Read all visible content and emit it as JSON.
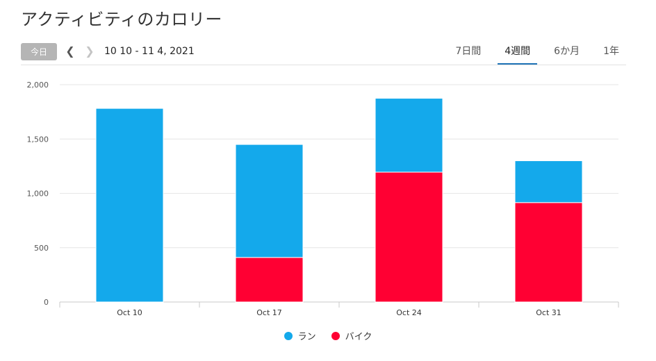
{
  "page": {
    "title": "アクティビティのカロリー"
  },
  "toolbar": {
    "today_label": "今日",
    "prev_icon": "chevron-left-icon",
    "next_icon": "chevron-right-icon",
    "date_range": "10 10 - 11 4, 2021",
    "tabs": [
      {
        "label": "7日間",
        "active": false
      },
      {
        "label": "4週間",
        "active": true
      },
      {
        "label": "6か月",
        "active": false
      },
      {
        "label": "1年",
        "active": false
      }
    ]
  },
  "colors": {
    "run": "#14a9eb",
    "bike": "#ff0033",
    "accent": "#1f73b7"
  },
  "chart_data": {
    "type": "bar",
    "stacked": true,
    "categories": [
      "Oct 10",
      "Oct 17",
      "Oct 24",
      "Oct 31"
    ],
    "series": [
      {
        "name": "バイク",
        "color": "#ff0033",
        "values": [
          0,
          410,
          1195,
          915
        ]
      },
      {
        "name": "ラン",
        "color": "#14a9eb",
        "values": [
          1782,
          1040,
          680,
          385
        ]
      }
    ],
    "y_ticks": [
      "0",
      "500",
      "1,000",
      "1,500",
      "2,000"
    ],
    "ylim": [
      0,
      2000
    ],
    "grid": true,
    "legend_position": "bottom-center"
  }
}
